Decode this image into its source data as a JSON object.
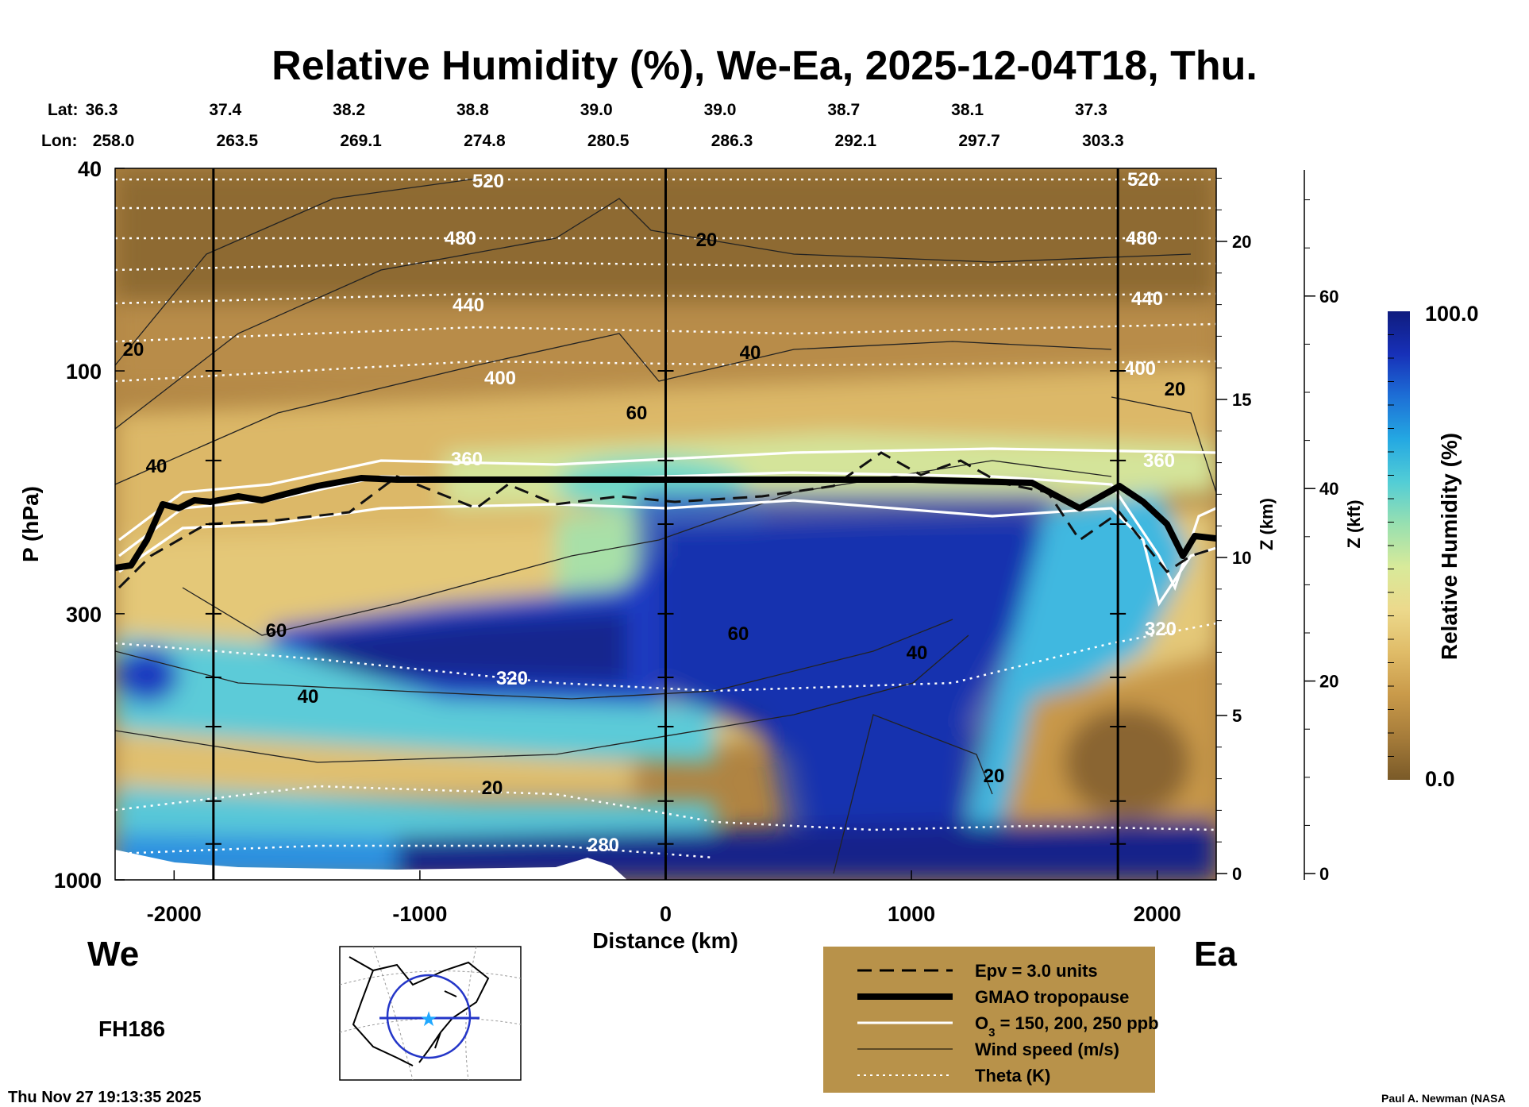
{
  "chart_data": {
    "type": "heatmap",
    "title": "Relative Humidity (%), We-Ea, 2025-12-04T18, Thu.",
    "header": {
      "lat_label": "Lat:",
      "lon_label": "Lon:",
      "lat": [
        "36.3",
        "37.4",
        "38.2",
        "38.8",
        "39.0",
        "39.0",
        "38.7",
        "38.1",
        "37.3"
      ],
      "lon": [
        "258.0",
        "263.5",
        "269.1",
        "274.8",
        "280.5",
        "286.3",
        "292.1",
        "297.7",
        "303.3"
      ]
    },
    "xlabel": "Distance (km)",
    "ylabel": "P (hPa)",
    "xlim": [
      -2240,
      2240
    ],
    "xticks": [
      -2000,
      -1000,
      0,
      1000,
      2000
    ],
    "xtick_labels": [
      "-2000",
      "-1000",
      "0",
      "1000",
      "2000"
    ],
    "yscale": "log",
    "ylim": [
      1000,
      40
    ],
    "yticks": [
      40,
      100,
      300,
      1000
    ],
    "ytick_labels": [
      "40",
      "100",
      "300",
      "1000"
    ],
    "z_km_label": "Z (km)",
    "z_km_ticks": [
      "0",
      "5",
      "10",
      "15",
      "20"
    ],
    "z_kft_label": "Z (kft)",
    "z_kft_ticks": [
      "0",
      "20",
      "40",
      "60"
    ],
    "vertical_lines_km": [
      -1840,
      0,
      1840
    ],
    "colorbar": {
      "label": "Relative Humidity (%)",
      "min_label": "0.0",
      "max_label": "100.0",
      "colors": [
        "#7a5a28",
        "#a67c3a",
        "#c99a4a",
        "#e0bc68",
        "#ecd98c",
        "#d8ea9a",
        "#98e0b0",
        "#52cdd6",
        "#24a8e2",
        "#1d6fd6",
        "#1730b8",
        "#0f1c7e"
      ]
    },
    "theta_labels": [
      "520",
      "480",
      "440",
      "400",
      "360",
      "320",
      "320",
      "280",
      "520",
      "480",
      "440",
      "400",
      "360"
    ],
    "wind_labels": [
      "20",
      "40",
      "60",
      "40",
      "20",
      "20",
      "60",
      "40",
      "40",
      "20",
      "20",
      "60"
    ],
    "left_label": "We",
    "right_label": "Ea",
    "forecast_hour": "FH186",
    "legend": [
      {
        "style": "dashed",
        "label": "Epv = 3.0 units"
      },
      {
        "style": "thick-black",
        "label": "GMAO tropopause"
      },
      {
        "style": "white",
        "label_main": "O",
        "label_sub": "3",
        "label_rest": " = 150, 200, 250 ppb"
      },
      {
        "style": "thin-black",
        "label": "Wind speed (m/s)"
      },
      {
        "style": "dotted-white",
        "label": "Theta (K)"
      }
    ],
    "timestamp": "Thu Nov 27 19:13:35 2025",
    "credit": "Paul A. Newman (NASA"
  }
}
